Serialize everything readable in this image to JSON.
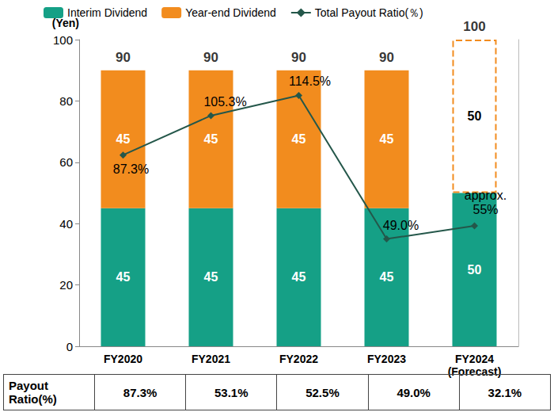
{
  "chart_data": {
    "type": "bar",
    "stacked": true,
    "data_labels": true,
    "grid": false,
    "legend": "top",
    "y_label": "(Yen)",
    "categories": [
      "FY2020",
      "FY2021",
      "FY2022",
      "FY2023",
      "FY2024\n(Forecast)"
    ],
    "ylim": [
      0,
      100
    ],
    "yticks": [
      0,
      20,
      40,
      60,
      80,
      100
    ],
    "y2lim": [
      0,
      140
    ],
    "y2ticks": [],
    "totals": [
      90,
      90,
      90,
      90,
      100
    ],
    "series": [
      {
        "name": "Interim Dividend",
        "type": "bar",
        "color": "#15a086",
        "values": [
          45,
          45,
          45,
          45,
          50
        ]
      },
      {
        "name": "Year-end Dividend",
        "type": "bar",
        "color": "#f28c1e",
        "colors": [
          "#f28c1e",
          "#f28c1e",
          "#f28c1e",
          "#f28c1e",
          "#ffffff"
        ],
        "values": [
          45,
          45,
          45,
          45,
          50
        ]
      },
      {
        "name": "Total Payout Ratio(％)",
        "type": "line",
        "axis": "y2",
        "color": "#24574a",
        "marker": "diamond",
        "values": [
          87.3,
          105.3,
          114.5,
          49.0,
          55
        ],
        "value_labels": [
          "87.3%",
          "105.3%",
          "114.5%",
          "49.0%",
          "approx.\n55%"
        ]
      }
    ]
  },
  "table": {
    "header": "Payout Ratio(%)",
    "cells": [
      "87.3%",
      "53.1%",
      "52.5%",
      "49.0%",
      "32.1%"
    ]
  }
}
